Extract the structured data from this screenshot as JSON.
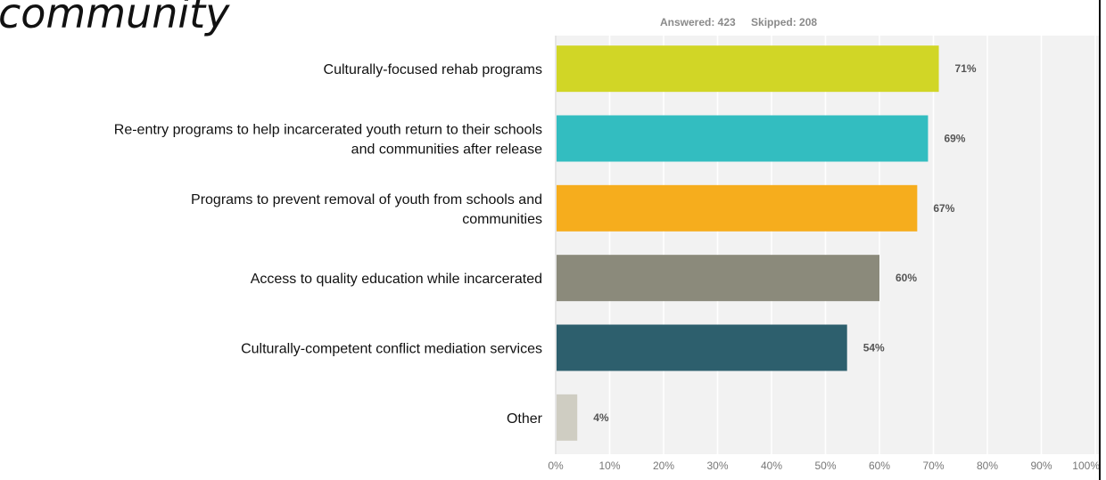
{
  "title_fragment": "community",
  "response_stats": {
    "answered": "Answered: 423",
    "skipped": "Skipped: 208"
  },
  "chart_data": {
    "type": "bar",
    "orientation": "horizontal",
    "categories": [
      [
        "Culturally-focused rehab programs"
      ],
      [
        "Re-entry programs to help incarcerated youth return to their schools",
        "and communities after release"
      ],
      [
        "Programs to prevent removal of youth from schools and",
        "communities"
      ],
      [
        "Access to quality education while incarcerated"
      ],
      [
        "Culturally-competent conflict mediation services"
      ],
      [
        "Other"
      ]
    ],
    "values": [
      71,
      69,
      67,
      60,
      54,
      4
    ],
    "value_labels": [
      "71%",
      "69%",
      "67%",
      "60%",
      "54%",
      "4%"
    ],
    "bar_colors": [
      "#d1d626",
      "#33bdc0",
      "#f6ad1d",
      "#8b8a7b",
      "#2d5f6d",
      "#cfcdc2"
    ],
    "xlim": [
      0,
      100
    ],
    "x_ticks": [
      "0%",
      "10%",
      "20%",
      "30%",
      "40%",
      "50%",
      "60%",
      "70%",
      "80%",
      "90%",
      "100%"
    ],
    "grid": true,
    "legend": "none"
  }
}
